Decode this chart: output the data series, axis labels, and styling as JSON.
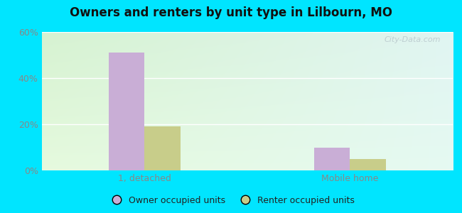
{
  "title": "Owners and renters by unit type in Lilbourn, MO",
  "categories": [
    "1, detached",
    "Mobile home"
  ],
  "owner_values": [
    51,
    10
  ],
  "renter_values": [
    19,
    5
  ],
  "owner_color": "#c9aed6",
  "renter_color": "#c8cd8a",
  "ylim": [
    0,
    60
  ],
  "yticks": [
    0,
    20,
    40,
    60
  ],
  "ytick_labels": [
    "0%",
    "20%",
    "40%",
    "60%"
  ],
  "bg_color_topleft": "#d8f0d0",
  "bg_color_topright": "#c8eeed",
  "bg_color_bottomleft": "#e8f8e0",
  "bg_color_bottomright": "#d8f4f0",
  "outer_color": "#00e5ff",
  "legend_owner": "Owner occupied units",
  "legend_renter": "Renter occupied units",
  "bar_width": 0.35,
  "group_positions": [
    1.0,
    3.0
  ],
  "xlim": [
    0.0,
    4.0
  ],
  "tick_color": "#888888",
  "title_color": "#111111",
  "watermark_color": "#b8c8cc",
  "watermark_text": "City-Data.com"
}
